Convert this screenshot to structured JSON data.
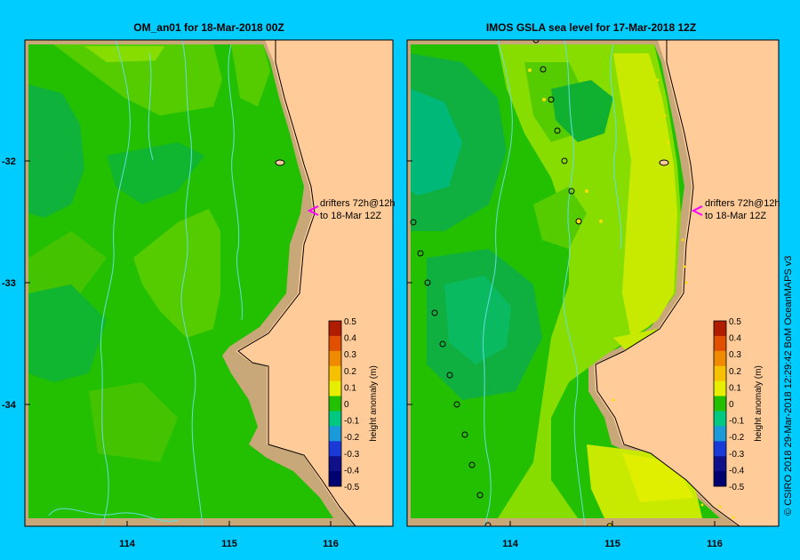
{
  "left_panel": {
    "title": "OM_an01  for 18-Mar-2018 00Z",
    "annotation_line1": "drifters 72h@12h",
    "annotation_line2": "to 18-Mar 12Z"
  },
  "right_panel": {
    "title": "IMOS GSLA sea level   for 17-Mar-2018 12Z",
    "annotation_line1": "drifters 72h@12h",
    "annotation_line2": "to 18-Mar 12Z"
  },
  "y_ticks": [
    "-32",
    "-33",
    "-34"
  ],
  "x_ticks": [
    "114",
    "115",
    "116"
  ],
  "colorbar": {
    "label": "height anomaly (m)",
    "ticks": [
      "0.5",
      "0.4",
      "0.3",
      "0.2",
      "0.1",
      "0",
      "-0.1",
      "-0.2",
      "-0.3",
      "-0.4",
      "-0.5"
    ],
    "colors": [
      "#b01c00",
      "#e05000",
      "#f08a00",
      "#f7c000",
      "#e8ee00",
      "#22c000",
      "#00c880",
      "#1a9ad8",
      "#1a3ad8",
      "#10108a",
      "#000070"
    ]
  },
  "credit": "© CSIRO 2018   29-Mar-2018 12:29:42 BoM OceanMAPS v3",
  "colors": {
    "background": "#00ccff",
    "land": "#ffcc99",
    "shelf": "#c8a878",
    "ocean_green": "#22c000",
    "anomaly_high": "#d7ee00"
  }
}
